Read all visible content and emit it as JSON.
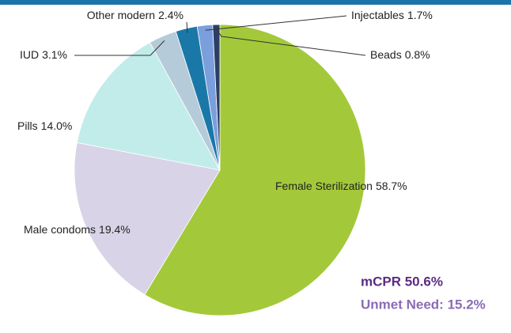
{
  "chart_data": {
    "type": "pie",
    "categories": [
      "Female Sterilization",
      "Male condoms",
      "Pills",
      "IUD",
      "Other modern",
      "Injectables",
      "Beads"
    ],
    "values": [
      58.7,
      19.4,
      14.0,
      3.1,
      2.4,
      1.7,
      0.8
    ],
    "value_labels": [
      "58.7%",
      "19.4%",
      "14.0%",
      "3.1%",
      "2.4%",
      "1.7%",
      "0.8%"
    ],
    "colors": [
      "#a3c93a",
      "#d9d3e8",
      "#c2ecea",
      "#b6cbd9",
      "#1a78a8",
      "#7b9fdc",
      "#2d3e66"
    ],
    "annotations": [
      "mCPR 50.6%",
      "Unmet Need: 15.2%"
    ]
  }
}
